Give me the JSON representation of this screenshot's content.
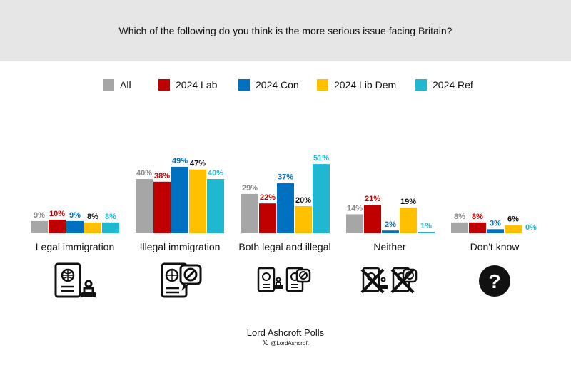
{
  "header": {
    "question": "Which of the following do you think is the more serious issue facing Britain?"
  },
  "colors": {
    "All": "#a6a6a6",
    "2024 Lab": "#c00000",
    "2024 Con": "#0070c0",
    "2024 Lib Dem": "#ffc000",
    "2024 Ref": "#1fb8d0"
  },
  "label_colors": {
    "All": "#888888",
    "2024 Lab": "#c00000",
    "2024 Con": "#0070c0",
    "2024 Lib Dem": "#111111",
    "2024 Ref": "#1fb8d0"
  },
  "chart_data": {
    "type": "bar",
    "title": "Which of the following do you think is the more serious issue facing Britain?",
    "categories": [
      "Legal immigration",
      "Illegal immigration",
      "Both legal and illegal",
      "Neither",
      "Don't know"
    ],
    "series": [
      {
        "name": "All",
        "values": [
          9,
          40,
          29,
          14,
          8
        ],
        "labels": [
          "9%",
          "40%",
          "29%",
          "14%",
          "8%"
        ]
      },
      {
        "name": "2024 Lab",
        "values": [
          10,
          38,
          22,
          21,
          8
        ],
        "labels": [
          "10%",
          "38%",
          "22%",
          "21%",
          "8%"
        ]
      },
      {
        "name": "2024 Con",
        "values": [
          9,
          49,
          37,
          2,
          3
        ],
        "labels": [
          "9%",
          "49%",
          "37%",
          "2%",
          "3%"
        ]
      },
      {
        "name": "2024 Lib Dem",
        "values": [
          8,
          47,
          20,
          19,
          6
        ],
        "labels": [
          "8%",
          "47%",
          "20%",
          "19%",
          "6%"
        ]
      },
      {
        "name": "2024 Ref",
        "values": [
          8,
          40,
          51,
          1,
          0
        ],
        "labels": [
          "8%",
          "40%",
          "51%",
          "1%",
          "0%"
        ]
      }
    ],
    "ylim": [
      0,
      51
    ],
    "xlabel": "",
    "ylabel": "",
    "grid": false,
    "legend": "top"
  },
  "icons": [
    "passport-stamp-icon",
    "illegal-passport-icon",
    "both-passports-icon",
    "neither-crossed-icon",
    "question-icon"
  ],
  "footer": {
    "brand": "Lord Ashcroft Polls",
    "handle": "@LordAshcroft",
    "x_glyph": "𝕏"
  }
}
